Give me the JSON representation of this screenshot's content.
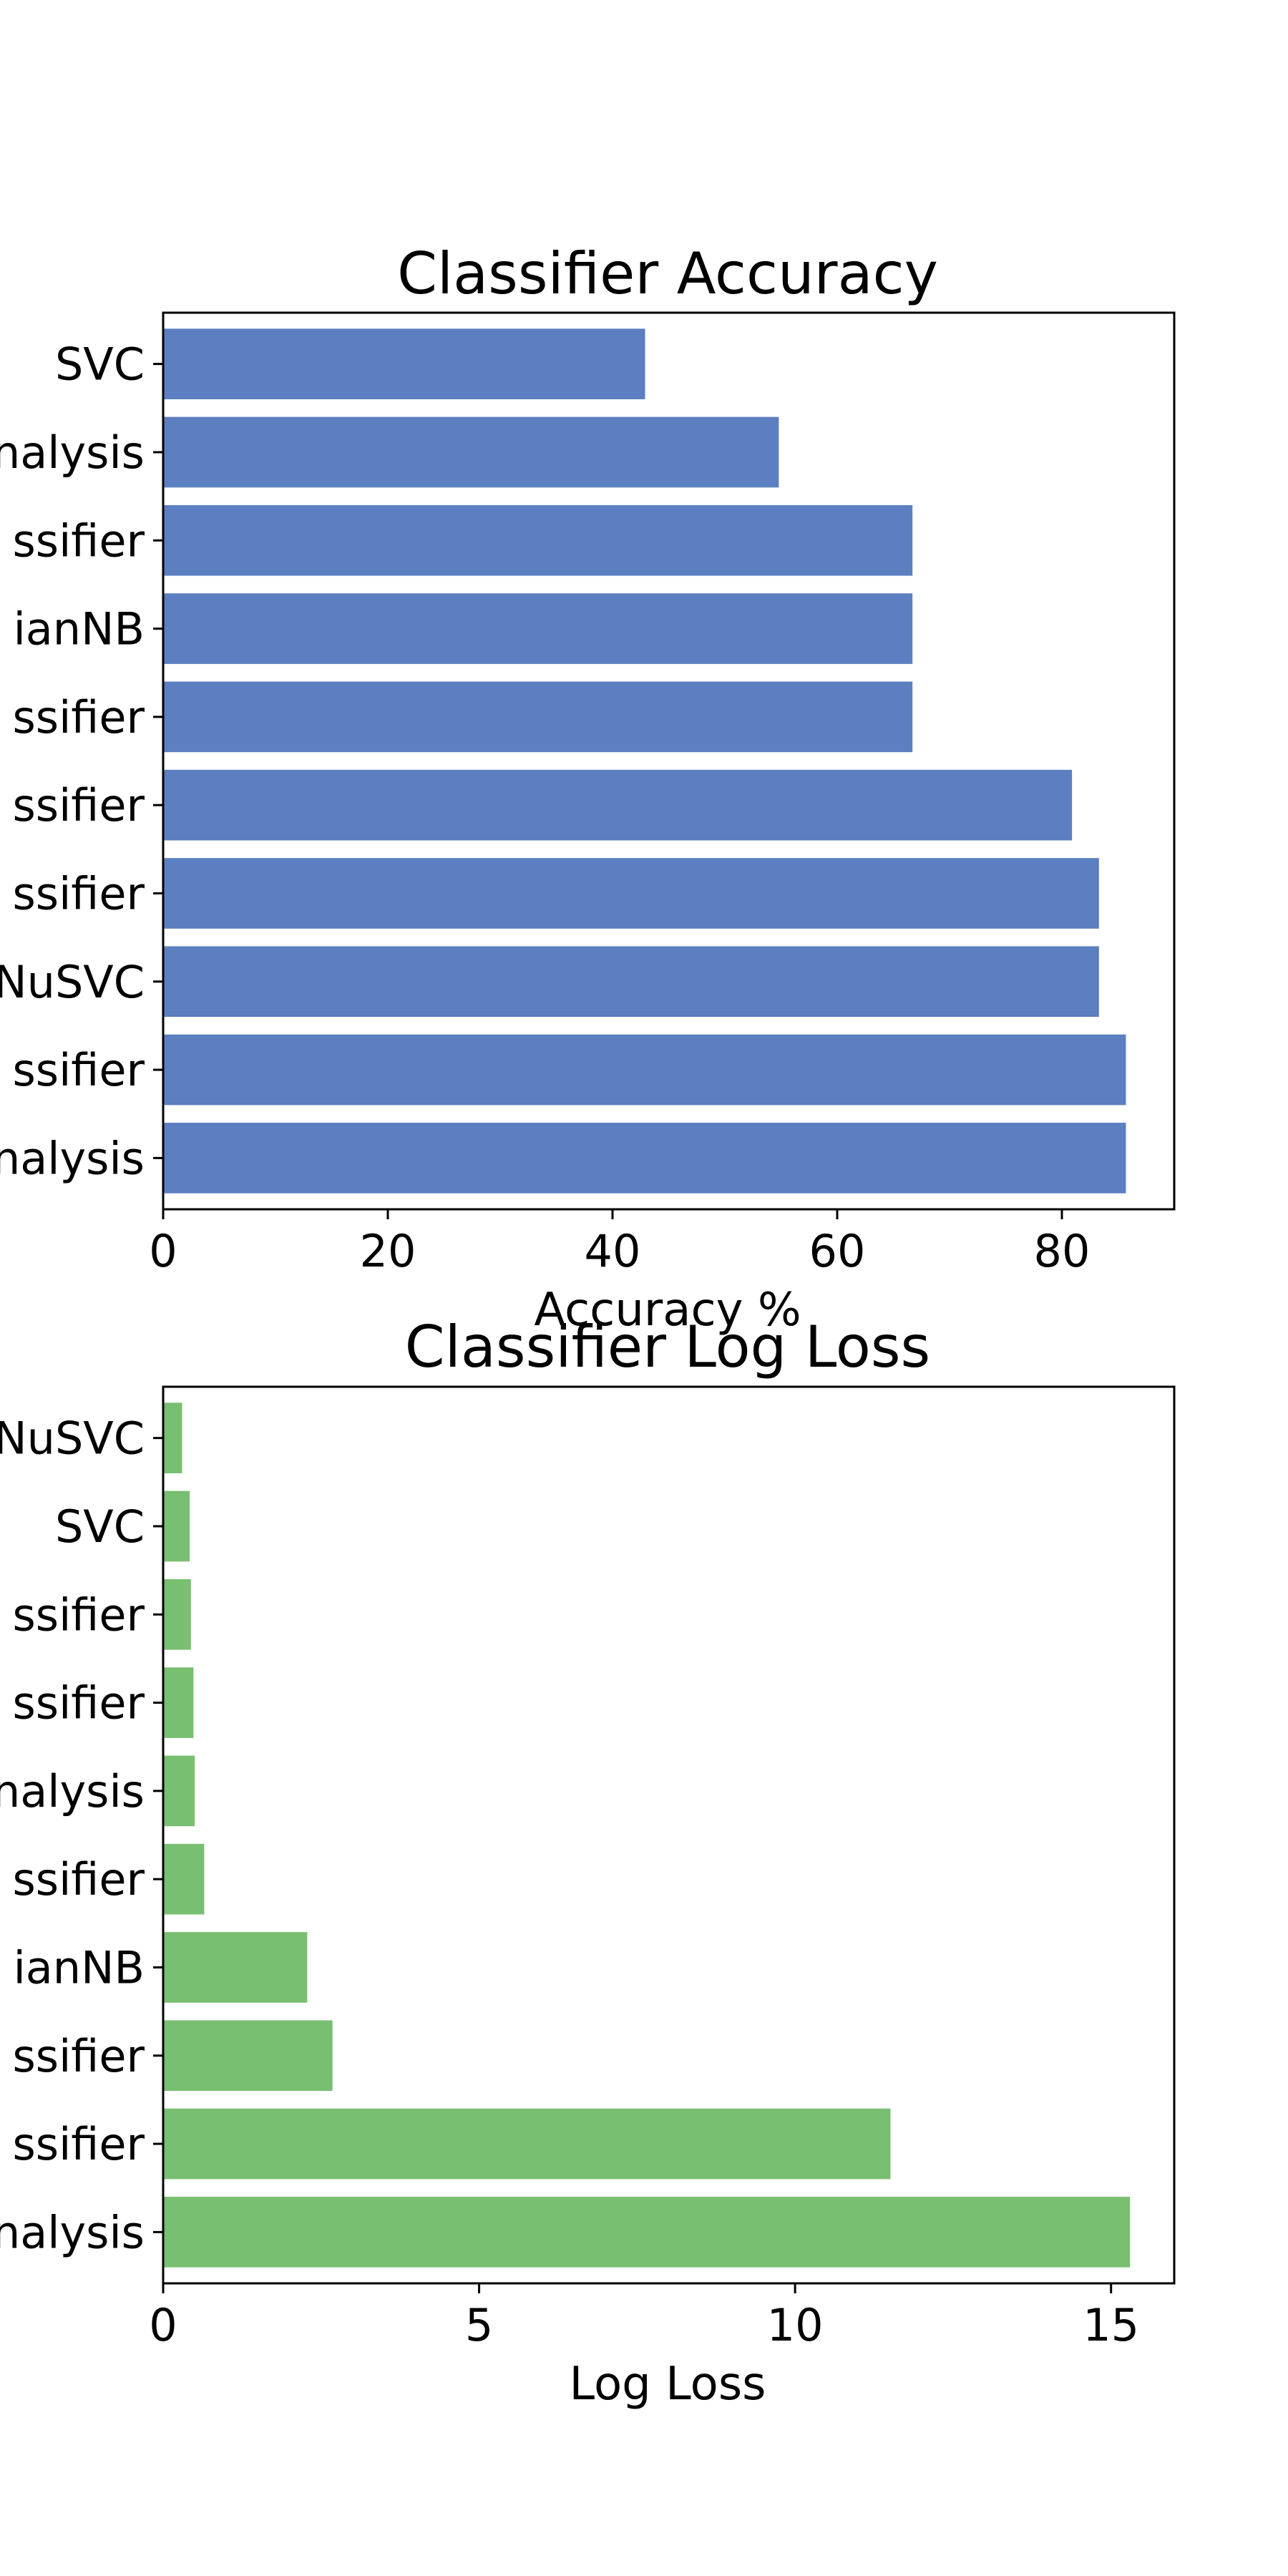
{
  "chart_data": [
    {
      "type": "bar",
      "orientation": "horizontal",
      "title": "Classifier Accuracy",
      "xlabel": "Accuracy %",
      "ylabel": "",
      "categories": [
        "SVC",
        "nalysis",
        "ssifier",
        "ianNB",
        "ssifier",
        "ssifier",
        "ssifier",
        "NuSVC",
        "ssifier",
        "nalysis"
      ],
      "values": [
        42.9,
        54.8,
        66.7,
        66.7,
        66.7,
        80.9,
        83.3,
        83.3,
        85.7,
        85.7
      ],
      "xlim": [
        0,
        90
      ],
      "xticks": [
        0,
        20,
        40,
        60,
        80
      ],
      "xtick_labels": [
        "0",
        "20",
        "40",
        "60",
        "80"
      ],
      "color": "#5b7fc0",
      "grid": false
    },
    {
      "type": "bar",
      "orientation": "horizontal",
      "title": "Classifier Log Loss",
      "xlabel": "Log Loss",
      "ylabel": "",
      "categories": [
        "NuSVC",
        "SVC",
        "ssifier",
        "ssifier",
        "nalysis",
        "ssifier",
        "ianNB",
        "ssifier",
        "ssifier",
        "nalysis"
      ],
      "values": [
        0.3,
        0.42,
        0.44,
        0.48,
        0.5,
        0.65,
        2.28,
        2.68,
        11.51,
        15.3
      ],
      "xlim": [
        0,
        16
      ],
      "xticks": [
        0,
        5,
        10,
        15
      ],
      "xtick_labels": [
        "0",
        "5",
        "10",
        "15"
      ],
      "color": "#78bf71",
      "grid": false
    }
  ]
}
